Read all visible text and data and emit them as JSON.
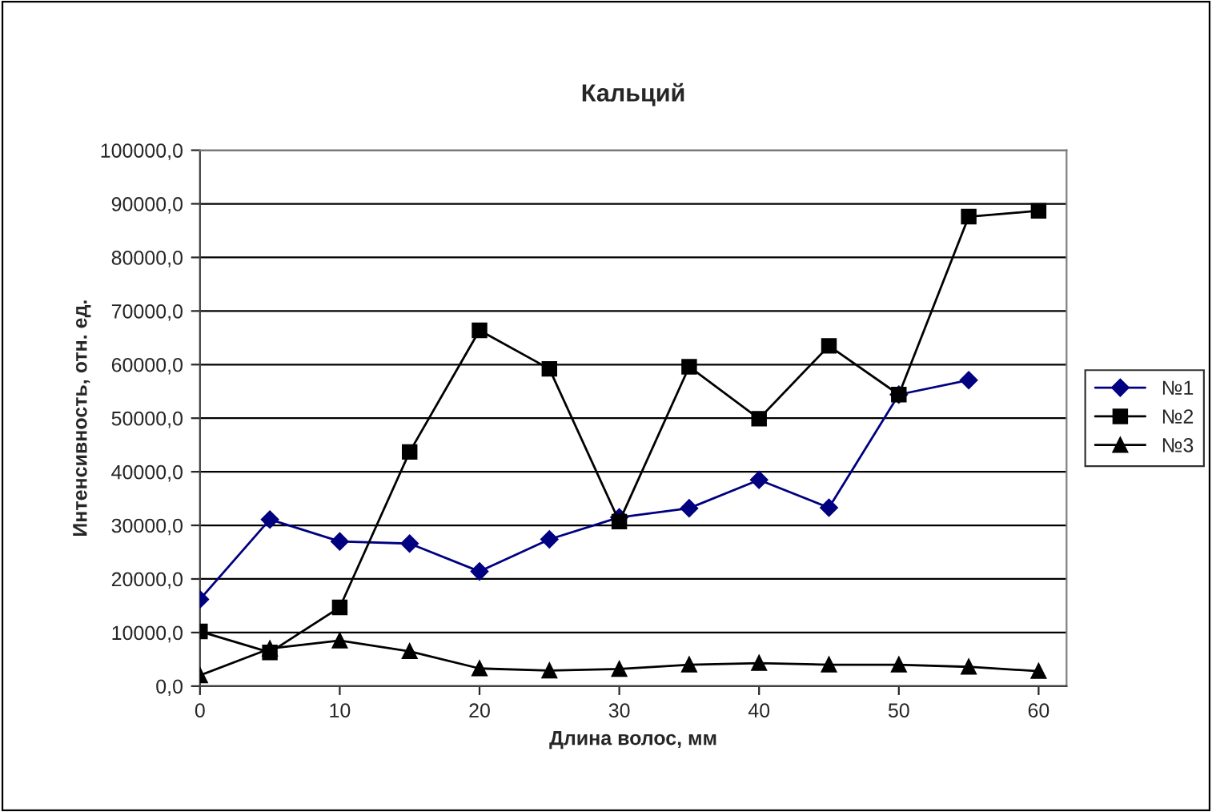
{
  "chart_data": {
    "type": "line",
    "title": "Кальций",
    "xlabel": "Длина волос, мм",
    "ylabel": "Интенсивность, отн. ед.",
    "x": [
      0,
      5,
      10,
      15,
      20,
      25,
      30,
      35,
      40,
      45,
      50,
      55,
      60
    ],
    "series": [
      {
        "name": "№1",
        "color": "#000080",
        "marker": "diamond",
        "values": [
          16200,
          31100,
          27000,
          26600,
          21400,
          27400,
          31500,
          33200,
          38500,
          33300,
          54400,
          57100,
          null
        ]
      },
      {
        "name": "№2",
        "color": "#000000",
        "marker": "square",
        "values": [
          10200,
          6300,
          14700,
          43700,
          66400,
          59200,
          30700,
          59600,
          49900,
          63500,
          54400,
          87600,
          88700
        ]
      },
      {
        "name": "№3",
        "color": "#000000",
        "marker": "triangle",
        "values": [
          2000,
          7000,
          8500,
          6500,
          3300,
          2900,
          3200,
          4000,
          4300,
          4000,
          4000,
          3600,
          2800
        ]
      }
    ],
    "xlim": [
      0,
      62
    ],
    "xticks": [
      0,
      10,
      20,
      30,
      40,
      50,
      60
    ],
    "ylim": [
      0,
      100000
    ],
    "yticks": [
      {
        "value": 0,
        "label": "0,0"
      },
      {
        "value": 10000,
        "label": "10000,0"
      },
      {
        "value": 20000,
        "label": "20000,0"
      },
      {
        "value": 30000,
        "label": "30000,0"
      },
      {
        "value": 40000,
        "label": "40000,0"
      },
      {
        "value": 50000,
        "label": "50000,0"
      },
      {
        "value": 60000,
        "label": "60000,0"
      },
      {
        "value": 70000,
        "label": "70000,0"
      },
      {
        "value": 80000,
        "label": "80000,0"
      },
      {
        "value": 90000,
        "label": "90000,0"
      },
      {
        "value": 100000,
        "label": "100000,0"
      }
    ],
    "grid": "y",
    "legend": "right",
    "line_style": "solid"
  }
}
